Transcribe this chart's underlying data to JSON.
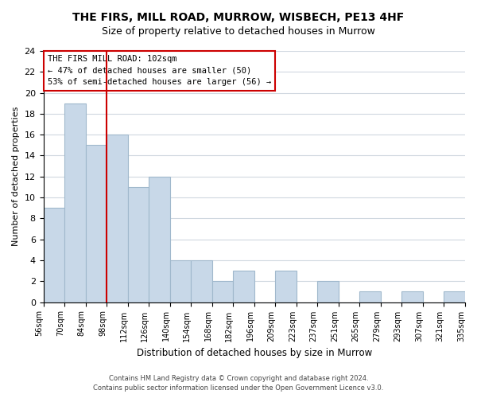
{
  "title": "THE FIRS, MILL ROAD, MURROW, WISBECH, PE13 4HF",
  "subtitle": "Size of property relative to detached houses in Murrow",
  "xlabel": "Distribution of detached houses by size in Murrow",
  "ylabel": "Number of detached properties",
  "bin_labels": [
    "56sqm",
    "70sqm",
    "84sqm",
    "98sqm",
    "112sqm",
    "126sqm",
    "140sqm",
    "154sqm",
    "168sqm",
    "182sqm",
    "196sqm",
    "209sqm",
    "223sqm",
    "237sqm",
    "251sqm",
    "265sqm",
    "279sqm",
    "293sqm",
    "307sqm",
    "321sqm",
    "335sqm"
  ],
  "bar_values": [
    9,
    19,
    15,
    16,
    11,
    12,
    4,
    4,
    2,
    3,
    0,
    3,
    0,
    2,
    0,
    1,
    0,
    1,
    0,
    1
  ],
  "bar_color": "#c8d8e8",
  "bar_edge_color": "#a0b8cc",
  "reference_line_x": 3.0,
  "reference_line_color": "#cc0000",
  "ylim": [
    0,
    24
  ],
  "yticks": [
    0,
    2,
    4,
    6,
    8,
    10,
    12,
    14,
    16,
    18,
    20,
    22,
    24
  ],
  "annotation_text_line1": "THE FIRS MILL ROAD: 102sqm",
  "annotation_text_line2": "← 47% of detached houses are smaller (50)",
  "annotation_text_line3": "53% of semi-detached houses are larger (56) →",
  "annotation_box_color": "#ffffff",
  "annotation_box_edge_color": "#cc0000",
  "footer_line1": "Contains HM Land Registry data © Crown copyright and database right 2024.",
  "footer_line2": "Contains public sector information licensed under the Open Government Licence v3.0.",
  "background_color": "#ffffff",
  "grid_color": "#d0d8e0"
}
